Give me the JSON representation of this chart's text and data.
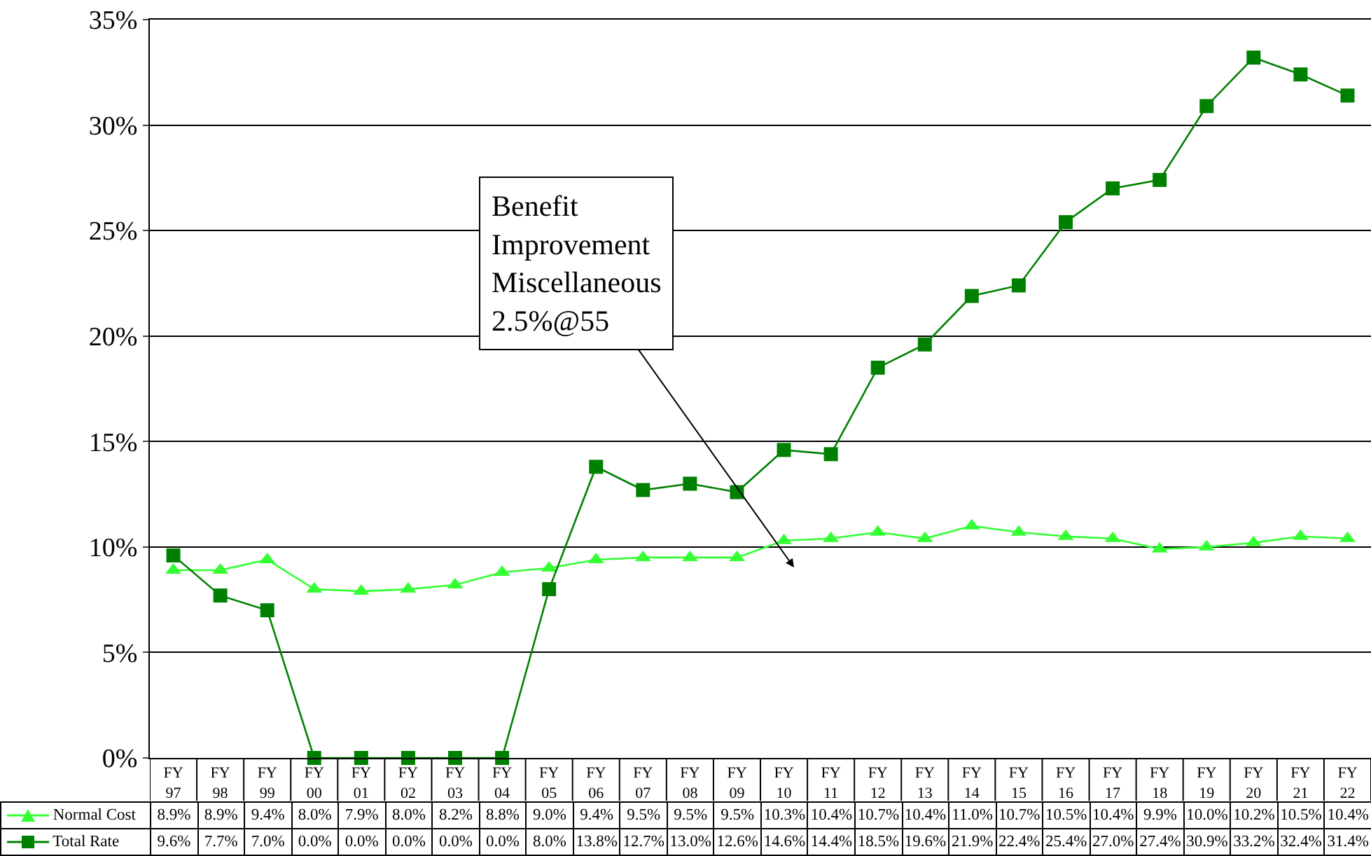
{
  "chart_data": {
    "type": "line",
    "categories": [
      "FY 97",
      "FY 98",
      "FY 99",
      "FY 00",
      "FY 01",
      "FY 02",
      "FY 03",
      "FY 04",
      "FY 05",
      "FY 06",
      "FY 07",
      "FY 08",
      "FY 09",
      "FY 10",
      "FY 11",
      "FY 12",
      "FY 13",
      "FY 14",
      "FY 15",
      "FY 16",
      "FY 17",
      "FY 18",
      "FY 19",
      "FY 20",
      "FY 21",
      "FY 22"
    ],
    "series": [
      {
        "name": "Normal Cost",
        "color": "#33ff33",
        "marker": "triangle",
        "values": [
          8.9,
          8.9,
          9.4,
          8.0,
          7.9,
          8.0,
          8.2,
          8.8,
          9.0,
          9.4,
          9.5,
          9.5,
          9.5,
          10.3,
          10.4,
          10.7,
          10.4,
          11.0,
          10.7,
          10.5,
          10.4,
          9.9,
          10.0,
          10.2,
          10.5,
          10.4
        ],
        "value_labels": [
          "8.9%",
          "8.9%",
          "9.4%",
          "8.0%",
          "7.9%",
          "8.0%",
          "8.2%",
          "8.8%",
          "9.0%",
          "9.4%",
          "9.5%",
          "9.5%",
          "9.5%",
          "10.3%",
          "10.4%",
          "10.7%",
          "10.4%",
          "11.0%",
          "10.7%",
          "10.5%",
          "10.4%",
          "9.9%",
          "10.0%",
          "10.2%",
          "10.5%",
          "10.4%"
        ]
      },
      {
        "name": "Total Rate",
        "color": "#008000",
        "marker": "square",
        "values": [
          9.6,
          7.7,
          7.0,
          0.0,
          0.0,
          0.0,
          0.0,
          0.0,
          8.0,
          13.8,
          12.7,
          13.0,
          12.6,
          14.6,
          14.4,
          18.5,
          19.6,
          21.9,
          22.4,
          25.4,
          27.0,
          27.4,
          30.9,
          33.2,
          32.4,
          31.4
        ],
        "value_labels": [
          "9.6%",
          "7.7%",
          "7.0%",
          "0.0%",
          "0.0%",
          "0.0%",
          "0.0%",
          "0.0%",
          "8.0%",
          "13.8%",
          "12.7%",
          "13.0%",
          "12.6%",
          "14.6%",
          "14.4%",
          "18.5%",
          "19.6%",
          "21.9%",
          "22.4%",
          "25.4%",
          "27.0%",
          "27.4%",
          "30.9%",
          "33.2%",
          "32.4%",
          "31.4%"
        ]
      }
    ],
    "ylim": [
      0,
      35
    ],
    "yticks": [
      {
        "value": 0,
        "label": "0%"
      },
      {
        "value": 5,
        "label": "5%"
      },
      {
        "value": 10,
        "label": "10%"
      },
      {
        "value": 15,
        "label": "15%"
      },
      {
        "value": 20,
        "label": "20%"
      },
      {
        "value": 25,
        "label": "25%"
      },
      {
        "value": 30,
        "label": "30%"
      },
      {
        "value": 35,
        "label": "35%"
      }
    ],
    "grid": "y",
    "legend": "bottom",
    "line_style": "solid",
    "annotations": [
      "Benefit Improvement Miscellaneous 2.5%@55"
    ]
  }
}
